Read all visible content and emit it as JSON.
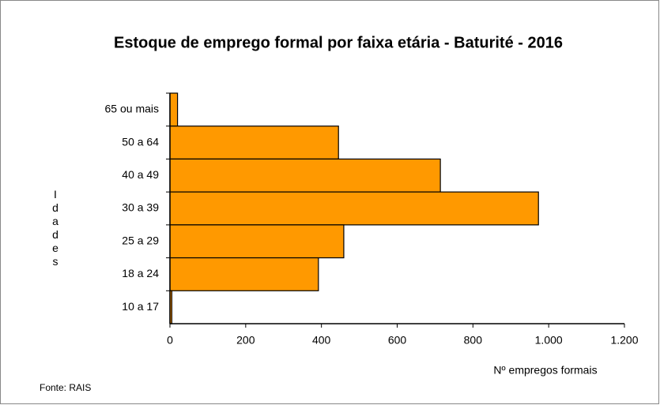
{
  "chart_data": {
    "type": "bar",
    "orientation": "horizontal",
    "title": "Estoque  de emprego formal por faixa etária - Baturité  - 2016",
    "xlabel": "Nº empregos formais",
    "ylabel": "Idades",
    "source": "Fonte:  RAIS",
    "categories": [
      "65 ou mais",
      "50 a 64",
      "40 a 49",
      "30 a 39",
      "25 a 29",
      "18 a 24",
      "10 a 17"
    ],
    "values": [
      20,
      445,
      714,
      973,
      459,
      392,
      5
    ],
    "color": "#ff9900",
    "xlim": [
      0,
      1200
    ],
    "xticks": [
      0,
      200,
      400,
      600,
      800,
      {
        "value": 1000,
        "label": "1.000"
      },
      {
        "value": 1200,
        "label": "1.200"
      }
    ],
    "grid": false
  }
}
